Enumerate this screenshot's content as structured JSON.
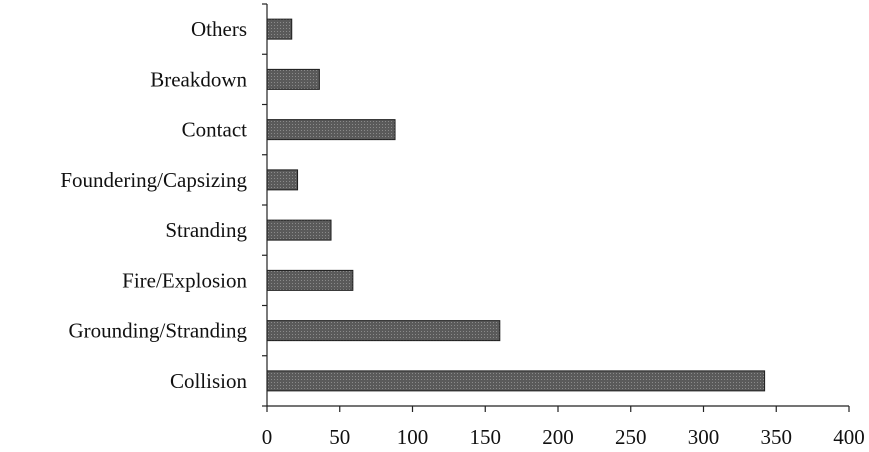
{
  "chart_data": {
    "type": "bar",
    "orientation": "horizontal",
    "categories": [
      "Collision",
      "Grounding/Stranding",
      "Fire/Explosion",
      "Stranding",
      "Foundering/Capsizing",
      "Contact",
      "Breakdown",
      "Others"
    ],
    "values": [
      342,
      160,
      59,
      44,
      21,
      88,
      36,
      17
    ],
    "x_ticks": [
      "0",
      "50",
      "100",
      "150",
      "200",
      "250",
      "300",
      "350",
      "400"
    ],
    "xlim": [
      0,
      400
    ],
    "title": "",
    "xlabel": "",
    "ylabel": "",
    "grid": false,
    "legend": "none",
    "bar_color": "#5a5a5a"
  }
}
